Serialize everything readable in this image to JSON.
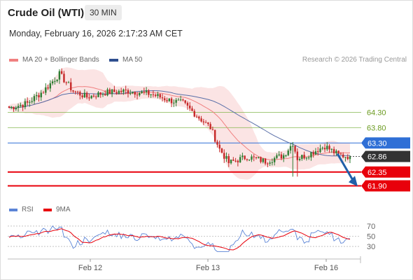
{
  "header": {
    "title": "Crude Oil (WTI)",
    "timeframe": "30 MIN",
    "datetime": "Monday, February 16, 2026 2:17:23 AM CET"
  },
  "legend": {
    "ma20": "MA 20 + Bollinger Bands",
    "ma50": "MA 50",
    "credit": "Research © 2026 Trading Central",
    "rsi": "RSI",
    "rsi_ma": "9MA"
  },
  "colors": {
    "candle_up": "#2e7d32",
    "candle_down": "#c62828",
    "ma20": "#f08080",
    "ma50": "#5a6fa8",
    "bollinger_fill": "#fadbdb",
    "resistance": "#7cb342",
    "pivot": "#2f6fd6",
    "support": "#e8000b",
    "current": "#333333",
    "rsi": "#5b84d6",
    "rsi_ma": "#e8000b"
  },
  "chart_data": {
    "type": "candlestick",
    "x_labels": [
      "Feb 12",
      "Feb 13",
      "Feb 16"
    ],
    "ylim": [
      61.75,
      65.8
    ],
    "current_price": 62.86,
    "levels": [
      {
        "value": 64.3,
        "label": "64.30",
        "kind": "resistance"
      },
      {
        "value": 63.8,
        "label": "63.80",
        "kind": "resistance"
      },
      {
        "value": 63.3,
        "label": "63.30",
        "kind": "pivot"
      },
      {
        "value": 62.35,
        "label": "62.35",
        "kind": "support"
      },
      {
        "value": 61.9,
        "label": "61.90",
        "kind": "support"
      }
    ],
    "current_label": "62.86",
    "forecast_arrow": {
      "from": 62.95,
      "to": 61.95
    },
    "rsi": {
      "ylim": [
        15,
        85
      ],
      "ticks": [
        "70",
        "50",
        "30"
      ],
      "tick_values": [
        70,
        50,
        30
      ]
    }
  }
}
